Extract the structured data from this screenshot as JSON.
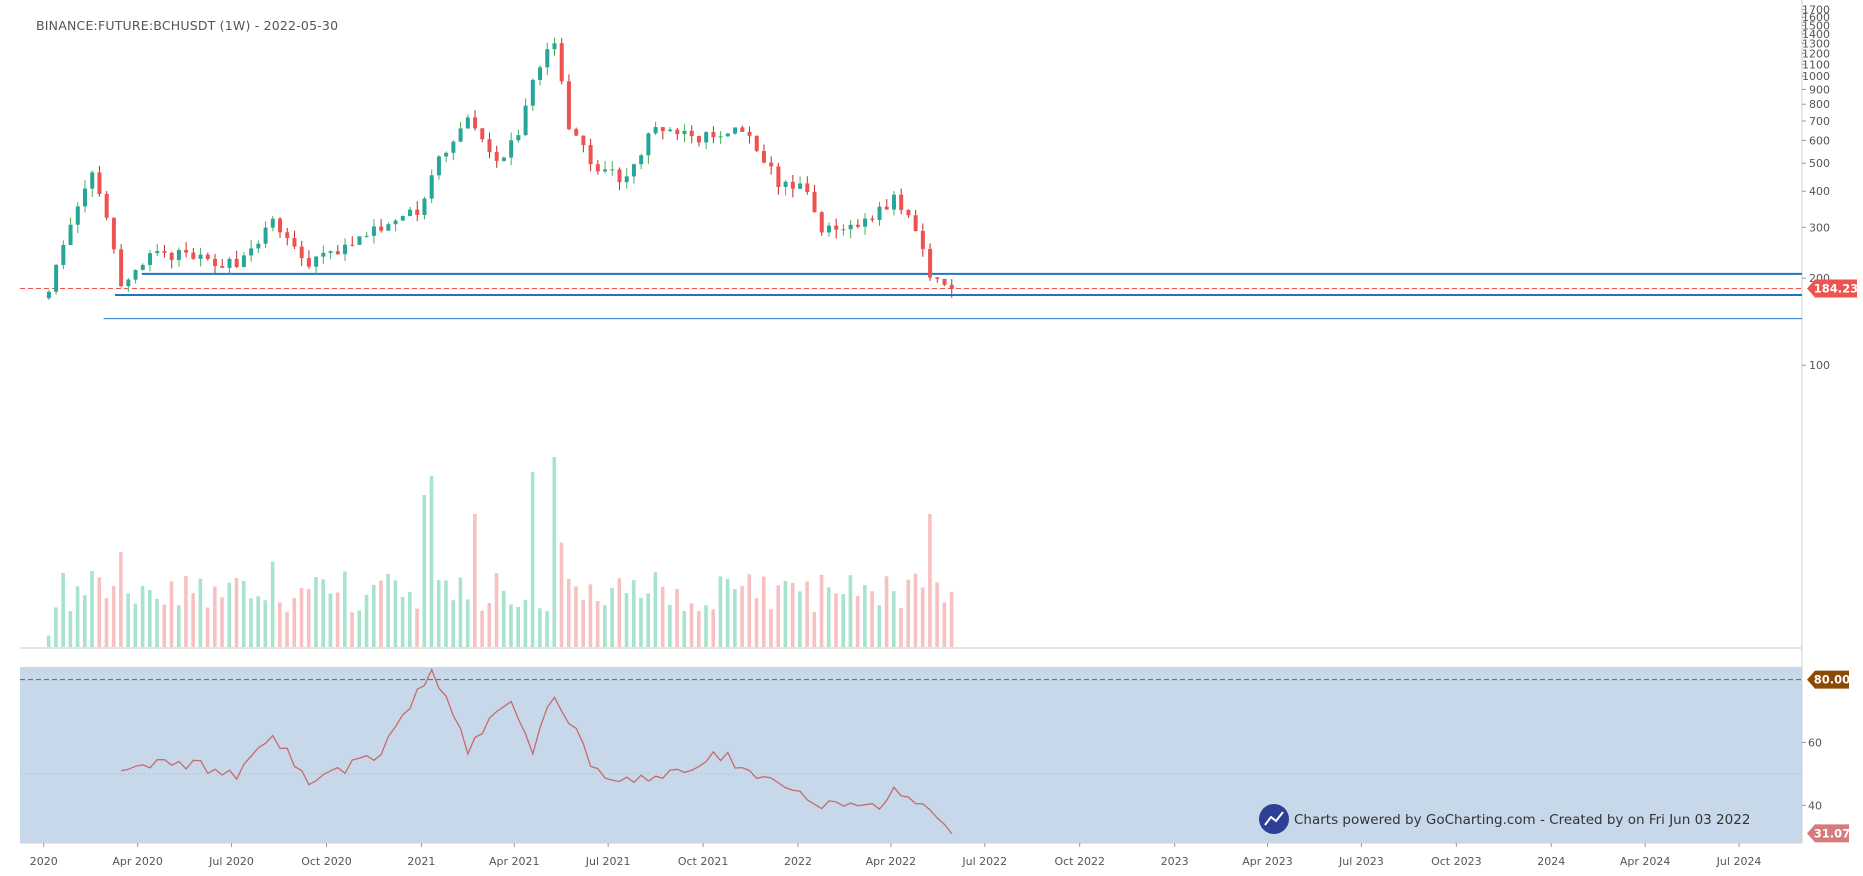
{
  "chart_title": "BINANCE:FUTURE:BCHUSDT (1W) - 2022-05-30",
  "price_axis": {
    "ticks": [
      100,
      200,
      300,
      400,
      500,
      600,
      700,
      800,
      900,
      1000,
      1100,
      1200,
      1300,
      1400,
      1500,
      1600,
      1700
    ],
    "scale": "log"
  },
  "time_axis": {
    "ticks": [
      "2020",
      "Apr 2020",
      "Jul 2020",
      "Oct 2020",
      "2021",
      "Apr 2021",
      "Jul 2021",
      "Oct 2021",
      "2022",
      "Apr 2022",
      "Jul 2022",
      "Oct 2022",
      "2023",
      "Apr 2023",
      "Jul 2023",
      "Oct 2023",
      "2024",
      "Apr 2024",
      "Jul 2024"
    ]
  },
  "last_price_label": "184.23",
  "rsi_axis": {
    "ticks": [
      40,
      60
    ]
  },
  "rsi_upper_label": "80.00",
  "rsi_last_label": "31.07",
  "credit": {
    "text": "Charts powered by GoCharting.com - Created by  on Fri Jun 03 2022"
  },
  "colors": {
    "up": "#26a69a",
    "down": "#ef5350",
    "wick_up": "#4caf50",
    "wick_down": "#c62828",
    "vol_up": "#a7e3cd",
    "vol_down": "#f7c1c1",
    "level_line": "#1f77c4",
    "last_price": "#ef5350",
    "rsi_band": "#c6d8ea",
    "rsi_line": "#c76b6b",
    "rsi_upper_tag": "#8d4a05",
    "rsi_last_tag": "#d67b7b",
    "logo": "#2e3f96"
  },
  "chart_data": [
    {
      "type": "candlestick",
      "title": "BINANCE:FUTURE:BCHUSDT (1W) - 2022-05-30",
      "yscale": "log",
      "ylim": [
        70,
        1750
      ],
      "x_range": [
        "2019-12-09",
        "2024-08-31"
      ],
      "last_price": 184.23,
      "horizontal_levels": [
        207,
        175,
        145
      ],
      "series": [
        {
          "name": "",
          "points": [
            {
              "date": "2020-01-06",
              "close": 188
            },
            {
              "date": "2020-02-17",
              "close": 460
            },
            {
              "date": "2020-03-09",
              "close": 260
            },
            {
              "date": "2020-03-16",
              "close": 180
            },
            {
              "date": "2020-04-13",
              "close": 240
            },
            {
              "date": "2020-05-11",
              "close": 240
            },
            {
              "date": "2020-06-08",
              "close": 230
            },
            {
              "date": "2020-07-06",
              "close": 225
            },
            {
              "date": "2020-08-10",
              "close": 310
            },
            {
              "date": "2020-09-14",
              "close": 225
            },
            {
              "date": "2020-10-19",
              "close": 255
            },
            {
              "date": "2020-11-23",
              "close": 300
            },
            {
              "date": "2020-12-28",
              "close": 340
            },
            {
              "date": "2021-01-18",
              "close": 520
            },
            {
              "date": "2021-02-15",
              "close": 700
            },
            {
              "date": "2021-03-15",
              "close": 500
            },
            {
              "date": "2021-04-05",
              "close": 630
            },
            {
              "date": "2021-04-19",
              "close": 1000
            },
            {
              "date": "2021-05-10",
              "close": 1300
            },
            {
              "date": "2021-05-24",
              "close": 650
            },
            {
              "date": "2021-06-21",
              "close": 480
            },
            {
              "date": "2021-07-19",
              "close": 440
            },
            {
              "date": "2021-08-16",
              "close": 680
            },
            {
              "date": "2021-09-13",
              "close": 620
            },
            {
              "date": "2021-10-18",
              "close": 610
            },
            {
              "date": "2021-11-08",
              "close": 650
            },
            {
              "date": "2021-12-13",
              "close": 430
            },
            {
              "date": "2022-01-10",
              "close": 400
            },
            {
              "date": "2022-01-24",
              "close": 290
            },
            {
              "date": "2022-02-21",
              "close": 300
            },
            {
              "date": "2022-03-21",
              "close": 340
            },
            {
              "date": "2022-04-04",
              "close": 380
            },
            {
              "date": "2022-04-25",
              "close": 300
            },
            {
              "date": "2022-05-09",
              "close": 210
            },
            {
              "date": "2022-05-30",
              "close": 184
            }
          ]
        }
      ]
    },
    {
      "type": "bar",
      "title": "",
      "note": "Volume, unlabeled; relative values 0-1",
      "series": [
        {
          "name": "",
          "x": [
            "2020-01-06",
            "2020-02-17",
            "2020-03-16",
            "2020-08-10",
            "2021-01-04",
            "2021-01-11",
            "2021-02-22",
            "2021-04-19",
            "2021-05-10",
            "2021-05-17",
            "2022-05-09",
            "2022-05-16"
          ],
          "values": [
            0.06,
            0.4,
            0.5,
            0.45,
            0.8,
            0.9,
            0.7,
            0.92,
            1.0,
            0.55,
            0.7,
            0.34
          ]
        }
      ]
    },
    {
      "type": "line",
      "title": "",
      "note": "RSI oscillator",
      "ylim": [
        28,
        84
      ],
      "upper_level": 80,
      "mid_level": 50,
      "last_value": 31.07,
      "series": [
        {
          "name": "",
          "x": [
            "2020-03-16",
            "2020-05-11",
            "2020-07-06",
            "2020-08-10",
            "2020-09-14",
            "2020-11-23",
            "2021-01-11",
            "2021-02-15",
            "2021-03-29",
            "2021-04-19",
            "2021-05-10",
            "2021-06-21",
            "2021-08-16",
            "2021-10-18",
            "2021-12-13",
            "2022-01-24",
            "2022-03-21",
            "2022-04-04",
            "2022-05-30"
          ],
          "values": [
            50,
            54,
            50,
            63,
            47,
            57,
            83,
            58,
            74,
            57,
            76,
            50,
            48,
            56,
            47,
            40,
            39,
            46,
            31
          ]
        }
      ]
    }
  ]
}
